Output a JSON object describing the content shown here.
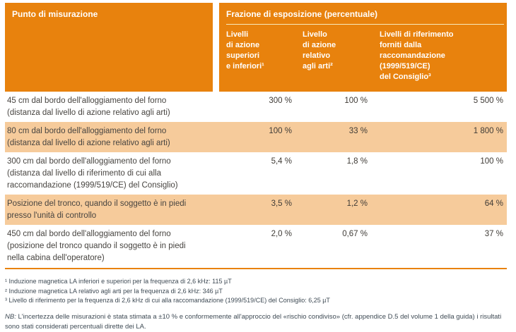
{
  "colors": {
    "header_orange": "#E8820D",
    "shaded_row": "#F6CB9B",
    "rule_orange": "#E8820D",
    "body_text": "#474440",
    "note_text": "#3E4A54"
  },
  "table": {
    "measurement_header": "Punto di misurazione",
    "exposure_group_header": "Frazione di esposizione (percentuale)",
    "subheaders": [
      "Livelli\ndi azione\nsuperiori\ne inferiori¹",
      "Livello\ndi azione\nrelativo\nagli arti²",
      "Livelli di riferimento\nforniti dalla\nraccomandazione\n(1999/519/CE)\ndel Consiglio³"
    ],
    "rows": [
      {
        "label": "45 cm dal bordo dell'alloggiamento del forno\n(distanza dal livello di azione relativo agli arti)",
        "values": [
          "300 %",
          "100 %",
          "5 500 %"
        ]
      },
      {
        "label": "80 cm dal bordo dell'alloggiamento del forno\n(distanza dal livello di azione relativo agli arti)",
        "values": [
          "100 %",
          "33 %",
          "1 800 %"
        ]
      },
      {
        "label": "300 cm dal bordo dell'alloggiamento del forno\n(distanza dal livello di riferimento di cui alla\nraccomandazione (1999/519/CE) del Consiglio)",
        "values": [
          "5,4 %",
          "1,8 %",
          "100 %"
        ]
      },
      {
        "label": "Posizione del tronco, quando il soggetto è in piedi\npresso l'unità di controllo",
        "values": [
          "3,5 %",
          "1,2 %",
          "64 %"
        ]
      },
      {
        "label": "450 cm dal bordo dell'alloggiamento del forno\n(posizione del tronco quando il soggetto è in piedi\nnella cabina dell'operatore)",
        "values": [
          "2,0 %",
          "0,67 %",
          "37 %"
        ]
      }
    ]
  },
  "footnotes": [
    "¹ Induzione magnetica LA inferiori e superiori per la frequenza di 2,6 kHz: 115 µT",
    "² Induzione magnetica LA relativo agli arti per la frequenza di 2,6 kHz: 346 µT",
    "³ Livello di riferimento per la frequenza di 2,6 kHz di cui alla raccomandazione (1999/519/CE) del Consiglio: 6,25 µT"
  ],
  "nb": {
    "prefix": "NB:",
    "text": "L'incertezza delle misurazioni è stata stimata a ±10 % e conformemente all'approccio del «rischio condiviso» (cfr. appendice D.5 del volume 1 della guida) i risultati sono stati considerati percentuali dirette dei LA."
  }
}
